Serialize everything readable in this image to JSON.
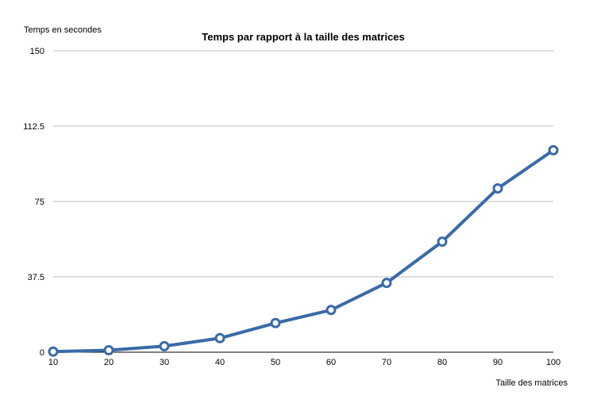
{
  "chart_data": {
    "type": "line",
    "title": "Temps par rapport à la taille des matrices",
    "xlabel": "Taille des matrices",
    "ylabel": "Temps en secondes",
    "x": [
      10,
      20,
      30,
      40,
      50,
      60,
      70,
      80,
      90,
      100
    ],
    "y_ticks": [
      "0",
      "37.5",
      "75",
      "112.5",
      "150"
    ],
    "ylim": [
      0,
      150
    ],
    "grid": true,
    "legend": "none",
    "series": [
      {
        "values": [
          0.3,
          1.0,
          3.0,
          7.0,
          14.5,
          21.0,
          34.5,
          55.0,
          81.5,
          100.5
        ],
        "color": "#3a6aa8"
      }
    ]
  }
}
